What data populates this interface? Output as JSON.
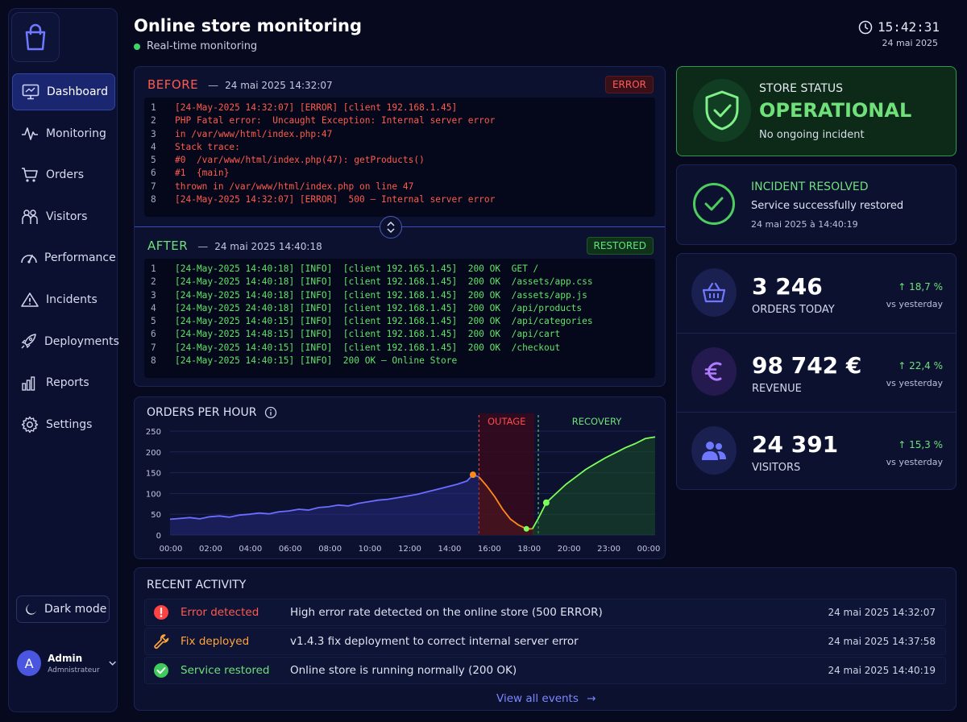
{
  "header": {
    "title": "Online store monitoring",
    "subtitle": "Real-time monitoring",
    "time": "15:42:31",
    "date": "24 mai 2025"
  },
  "sidebar": {
    "items": [
      {
        "label": "Dashboard",
        "icon": "monitor-icon",
        "active": true
      },
      {
        "label": "Monitoring",
        "icon": "pulse-icon"
      },
      {
        "label": "Orders",
        "icon": "cart-icon"
      },
      {
        "label": "Visitors",
        "icon": "users-icon"
      },
      {
        "label": "Performance",
        "icon": "gauge-icon"
      },
      {
        "label": "Incidents",
        "icon": "warning-icon"
      },
      {
        "label": "Deployments",
        "icon": "rocket-icon"
      },
      {
        "label": "Reports",
        "icon": "bar-chart-icon"
      },
      {
        "label": "Settings",
        "icon": "gear-icon"
      }
    ],
    "dark_mode": "Dark mode",
    "user": {
      "initial": "A",
      "name": "Admin",
      "role": "Admnistrateur"
    }
  },
  "logs": {
    "before": {
      "title": "BEFORE",
      "date": "24 mai 2025 14:32:07",
      "badge": "ERROR",
      "lines": [
        {
          "n": "1",
          "text": "[24-May-2025 14:32:07] [ERROR] [client 192.168.1.45]"
        },
        {
          "n": "2",
          "text": "PHP Fatal error:  Uncaught Exception: Internal server error"
        },
        {
          "n": "3",
          "text": "in /var/www/html/index.php:47"
        },
        {
          "n": "4",
          "text": "Stack trace:"
        },
        {
          "n": "5",
          "text": "#0  /var/www/html/index.php(47): getProducts()"
        },
        {
          "n": "6",
          "text": "#1  {main}"
        },
        {
          "n": "7",
          "text": "thrown in /var/www/html/index.php on line 47"
        },
        {
          "n": "8",
          "text": "[24-May-2025 14:32:07] [ERROR]  500 — Internal server error"
        }
      ]
    },
    "after": {
      "title": "AFTER",
      "date": "24 mai 2025 14:40:18",
      "badge": "RESTORED",
      "lines": [
        {
          "n": "1",
          "text": "[24-May-2025 14:40:18] [INFO]  [client 192.165.1.45]  200 OK  GET /"
        },
        {
          "n": "2",
          "text": "[24-May-2025 14:40:18] [INFO]  [client 192.168.1.45]  200 OK  /assets/app.css"
        },
        {
          "n": "3",
          "text": "[24-May-2025 14:40:18] [INFO]  [client 192.168.1.45]  200 OK  /assets/app.js"
        },
        {
          "n": "4",
          "text": "[24-May-2025 24:40:18] [INFO]  [client 192.168.1.45]  200 OK  /api/products"
        },
        {
          "n": "5",
          "text": "[24-May-2025 14:40:15] [INFO]  [client 192.168.1.45]  200 OK  /api/categories"
        },
        {
          "n": "6",
          "text": "[24-May-2025 14:48:15] [INFO]  [client 192.168.1.45]  200 OK  /api/cart"
        },
        {
          "n": "7",
          "text": "[24-May-2025 14:40:15] [INFO]  [client 192.168.1.45]  200 OK  /checkout"
        },
        {
          "n": "8",
          "text": "[24-May-2025 14:40:15] [INFO]  200 OK — Online Store"
        }
      ]
    }
  },
  "status": {
    "label": "STORE STATUS",
    "value": "OPERATIONAL",
    "sub": "No ongoing incident"
  },
  "incident": {
    "title": "INCIDENT RESOLVED",
    "sub": "Service successfully restored",
    "date": "24 mai 2025 à 14:40:19"
  },
  "kpis": [
    {
      "value": "3 246",
      "label": "ORDERS TODAY",
      "delta": "18,7 %",
      "vs": "vs yesterday",
      "icon": "basket-icon",
      "color": "#5b63f5"
    },
    {
      "value": "98 742 €",
      "label": "REVENUE",
      "delta": "22,4 %",
      "vs": "vs yesterday",
      "icon": "euro-icon",
      "color": "#a872f5"
    },
    {
      "value": "24 391",
      "label": "VISITORS",
      "delta": "15,3 %",
      "vs": "vs yesterday",
      "icon": "users-icon",
      "color": "#5b63f5"
    }
  ],
  "chart_data": {
    "type": "line",
    "title": "ORDERS PER HOUR",
    "xlabel": "",
    "ylabel": "",
    "x_ticks": [
      "00:00",
      "02:00",
      "04:00",
      "06:00",
      "08:00",
      "10:00",
      "12:00",
      "14:00",
      "16:00",
      "18:00",
      "20:00",
      "23:00",
      "00:00"
    ],
    "y_ticks": [
      0,
      50,
      100,
      150,
      200,
      250
    ],
    "ylim": [
      0,
      250
    ],
    "annotations": [
      {
        "label": "OUTAGE",
        "from_x": 15.6,
        "to_x": 18.4,
        "color": "#ff4a4a"
      },
      {
        "label": "RECOVERY",
        "from_x": 18.6,
        "to_x": 24.5,
        "color": "#6fe07a"
      }
    ],
    "series": [
      {
        "color_normal": "#6a6dff",
        "color_outage": "#ff8a1a",
        "color_recovery": "#7cff5a",
        "x": [
          0,
          0.5,
          1,
          1.5,
          2,
          2.5,
          3,
          3.5,
          4,
          4.5,
          5,
          5.5,
          6,
          6.5,
          7,
          7.5,
          8,
          8.5,
          9,
          9.5,
          10,
          10.5,
          11,
          11.5,
          12,
          12.5,
          13,
          13.5,
          14,
          14.5,
          15,
          15.3,
          15.6,
          16,
          16.4,
          16.8,
          17.2,
          17.6,
          18,
          18.3,
          18.6,
          19,
          19.5,
          20,
          20.5,
          21,
          21.5,
          22,
          22.5,
          23,
          23.5,
          24,
          24.5
        ],
        "y": [
          38,
          40,
          42,
          39,
          44,
          46,
          43,
          48,
          50,
          53,
          51,
          56,
          58,
          62,
          60,
          66,
          68,
          72,
          70,
          76,
          80,
          84,
          86,
          90,
          94,
          98,
          104,
          110,
          116,
          122,
          130,
          145,
          140,
          118,
          92,
          62,
          38,
          24,
          15,
          15,
          40,
          78,
          100,
          122,
          140,
          158,
          172,
          186,
          198,
          210,
          220,
          232,
          236
        ]
      }
    ]
  },
  "activity": {
    "title": "RECENT ACTIVITY",
    "rows": [
      {
        "type": "Error detected",
        "desc": "High error rate detected on the online store (500 ERROR)",
        "date": "24 mai 2025 14:32:07",
        "icon": "error-icon",
        "color": "#ff5a4d"
      },
      {
        "type": "Fix deployed",
        "desc": "v1.4.3 fix deployment to correct internal server error",
        "date": "24 mai 2025 14:37:58",
        "icon": "wrench-icon",
        "color": "#ffa43a"
      },
      {
        "type": "Service restored",
        "desc": "Online store is running normally (200 OK)",
        "date": "24 mai 2025 14:40:19",
        "icon": "check-circle-icon",
        "color": "#6fe07a"
      }
    ],
    "view_all": "View all events"
  }
}
